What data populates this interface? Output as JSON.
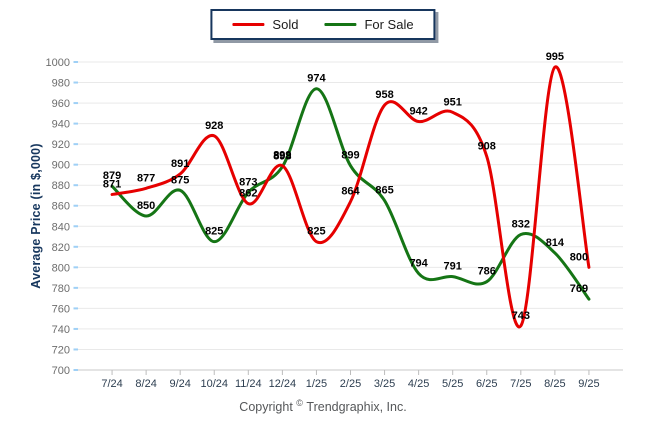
{
  "legend": {
    "items": [
      {
        "label": "Sold",
        "color": "#e60000"
      },
      {
        "label": "For Sale",
        "color": "#157515"
      }
    ]
  },
  "y_axis": {
    "title": "Average Price (in $,000)",
    "ticks": [
      1000,
      980,
      960,
      940,
      920,
      900,
      880,
      860,
      840,
      820,
      800,
      780,
      760,
      740,
      720,
      700
    ]
  },
  "footer": {
    "prefix": "Copyright",
    "symbol": "©",
    "suffix": "Trendgraphix, Inc."
  },
  "colors": {
    "sold_line": "#e60000",
    "for_sale_line": "#157515",
    "gridline": "#e9e9e9",
    "axis_line": "#c9c9c9",
    "blue_tick": "#9fd0f6",
    "x_label": "#2d3e50",
    "y_tick_label": "#6d6d6d",
    "data_label": "#000000"
  },
  "chart_data": {
    "type": "line",
    "title": "",
    "xlabel": "",
    "ylabel": "Average Price (in $,000)",
    "ylim": [
      700,
      1000
    ],
    "y_step": 20,
    "grid": true,
    "legend_position": "top-center",
    "smoothing": "spline",
    "categories": [
      "7/24",
      "8/24",
      "9/24",
      "10/24",
      "11/24",
      "12/24",
      "1/25",
      "2/25",
      "3/25",
      "4/25",
      "5/25",
      "6/25",
      "7/25",
      "8/25",
      "9/25"
    ],
    "series": [
      {
        "name": "Sold",
        "color": "#e60000",
        "values": [
          871,
          877,
          891,
          928,
          862,
          899,
          825,
          864,
          958,
          942,
          951,
          908,
          743,
          995,
          800
        ]
      },
      {
        "name": "For Sale",
        "color": "#157515",
        "values": [
          879,
          850,
          875,
          825,
          873,
          898,
          974,
          899,
          865,
          794,
          791,
          786,
          832,
          814,
          769
        ]
      }
    ]
  }
}
